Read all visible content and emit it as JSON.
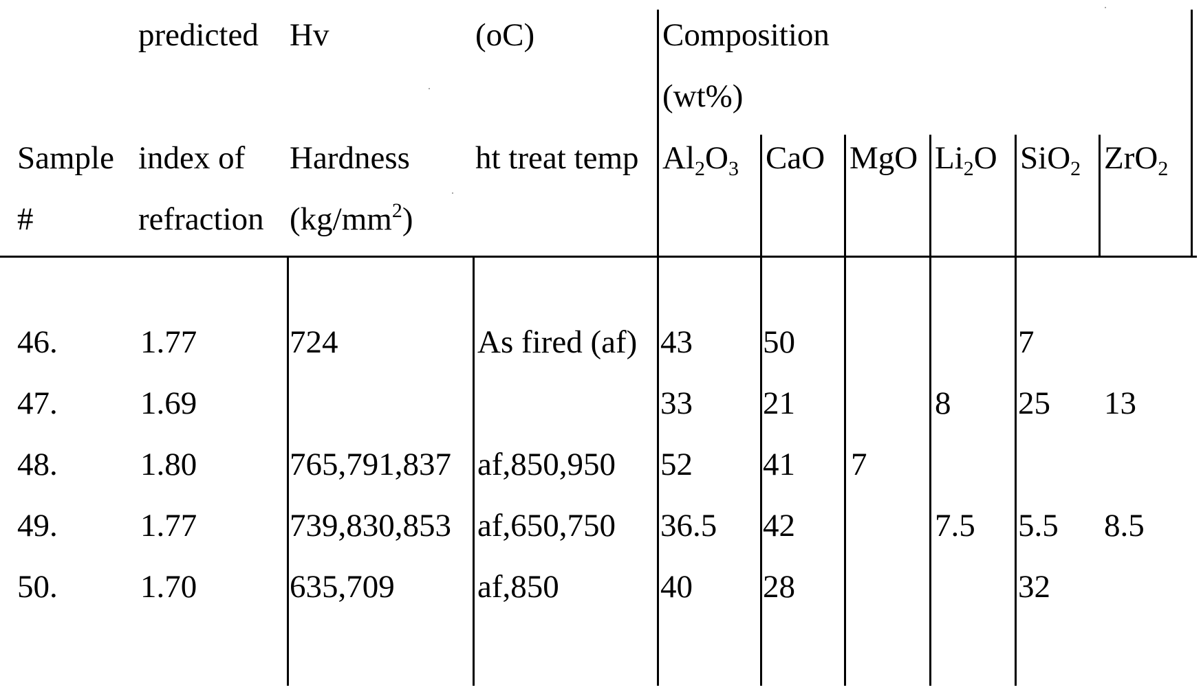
{
  "header": {
    "row1": {
      "predicted": "predicted",
      "hv": "Hv",
      "oc": "(oC)",
      "composition": "Composition"
    },
    "row2": {
      "wt": "(wt%)"
    },
    "row3": {
      "sample": "Sample",
      "index_of": "index of",
      "hardness": "Hardness",
      "ht_treat_temp": "ht treat temp",
      "al2o3": {
        "base": "Al",
        "sub1": "2",
        "mid": "O",
        "sub2": "3"
      },
      "cao": "CaO",
      "mgo": "MgO",
      "li2o": {
        "base": "Li",
        "sub1": "2",
        "mid": "O"
      },
      "sio2": {
        "base": "SiO",
        "sub1": "2"
      },
      "zro2": {
        "base": "ZrO",
        "sub1": "2"
      }
    },
    "row4": {
      "hash": "#",
      "refraction": "refraction",
      "kgmm": {
        "pre": "(kg/mm",
        "sup": "2",
        "post": ")"
      }
    }
  },
  "rows": [
    {
      "sample": "46.",
      "index": "1.77",
      "hardness": "724",
      "temp": "As fired (af)",
      "al2o3": "43",
      "cao": "50",
      "mgo": "",
      "li2o": "",
      "sio2": "7",
      "zro2": ""
    },
    {
      "sample": "47.",
      "index": "1.69",
      "hardness": "",
      "temp": "",
      "al2o3": "33",
      "cao": "21",
      "mgo": "",
      "li2o": "8",
      "sio2": "25",
      "zro2": "13"
    },
    {
      "sample": "48.",
      "index": "1.80",
      "hardness": "765,791,837",
      "temp": "af,850,950",
      "al2o3": "52",
      "cao": "41",
      "mgo": "7",
      "li2o": "",
      "sio2": "",
      "zro2": ""
    },
    {
      "sample": "49.",
      "index": "1.77",
      "hardness": "739,830,853",
      "temp": "af,650,750",
      "al2o3": "36.5",
      "cao": "42",
      "mgo": "",
      "li2o": "7.5",
      "sio2": "5.5",
      "zro2": "8.5"
    },
    {
      "sample": "50.",
      "index": "1.70",
      "hardness": "635,709",
      "temp": "af,850",
      "al2o3": "40",
      "cao": "28",
      "mgo": "",
      "li2o": "",
      "sio2": "32",
      "zro2": ""
    }
  ]
}
